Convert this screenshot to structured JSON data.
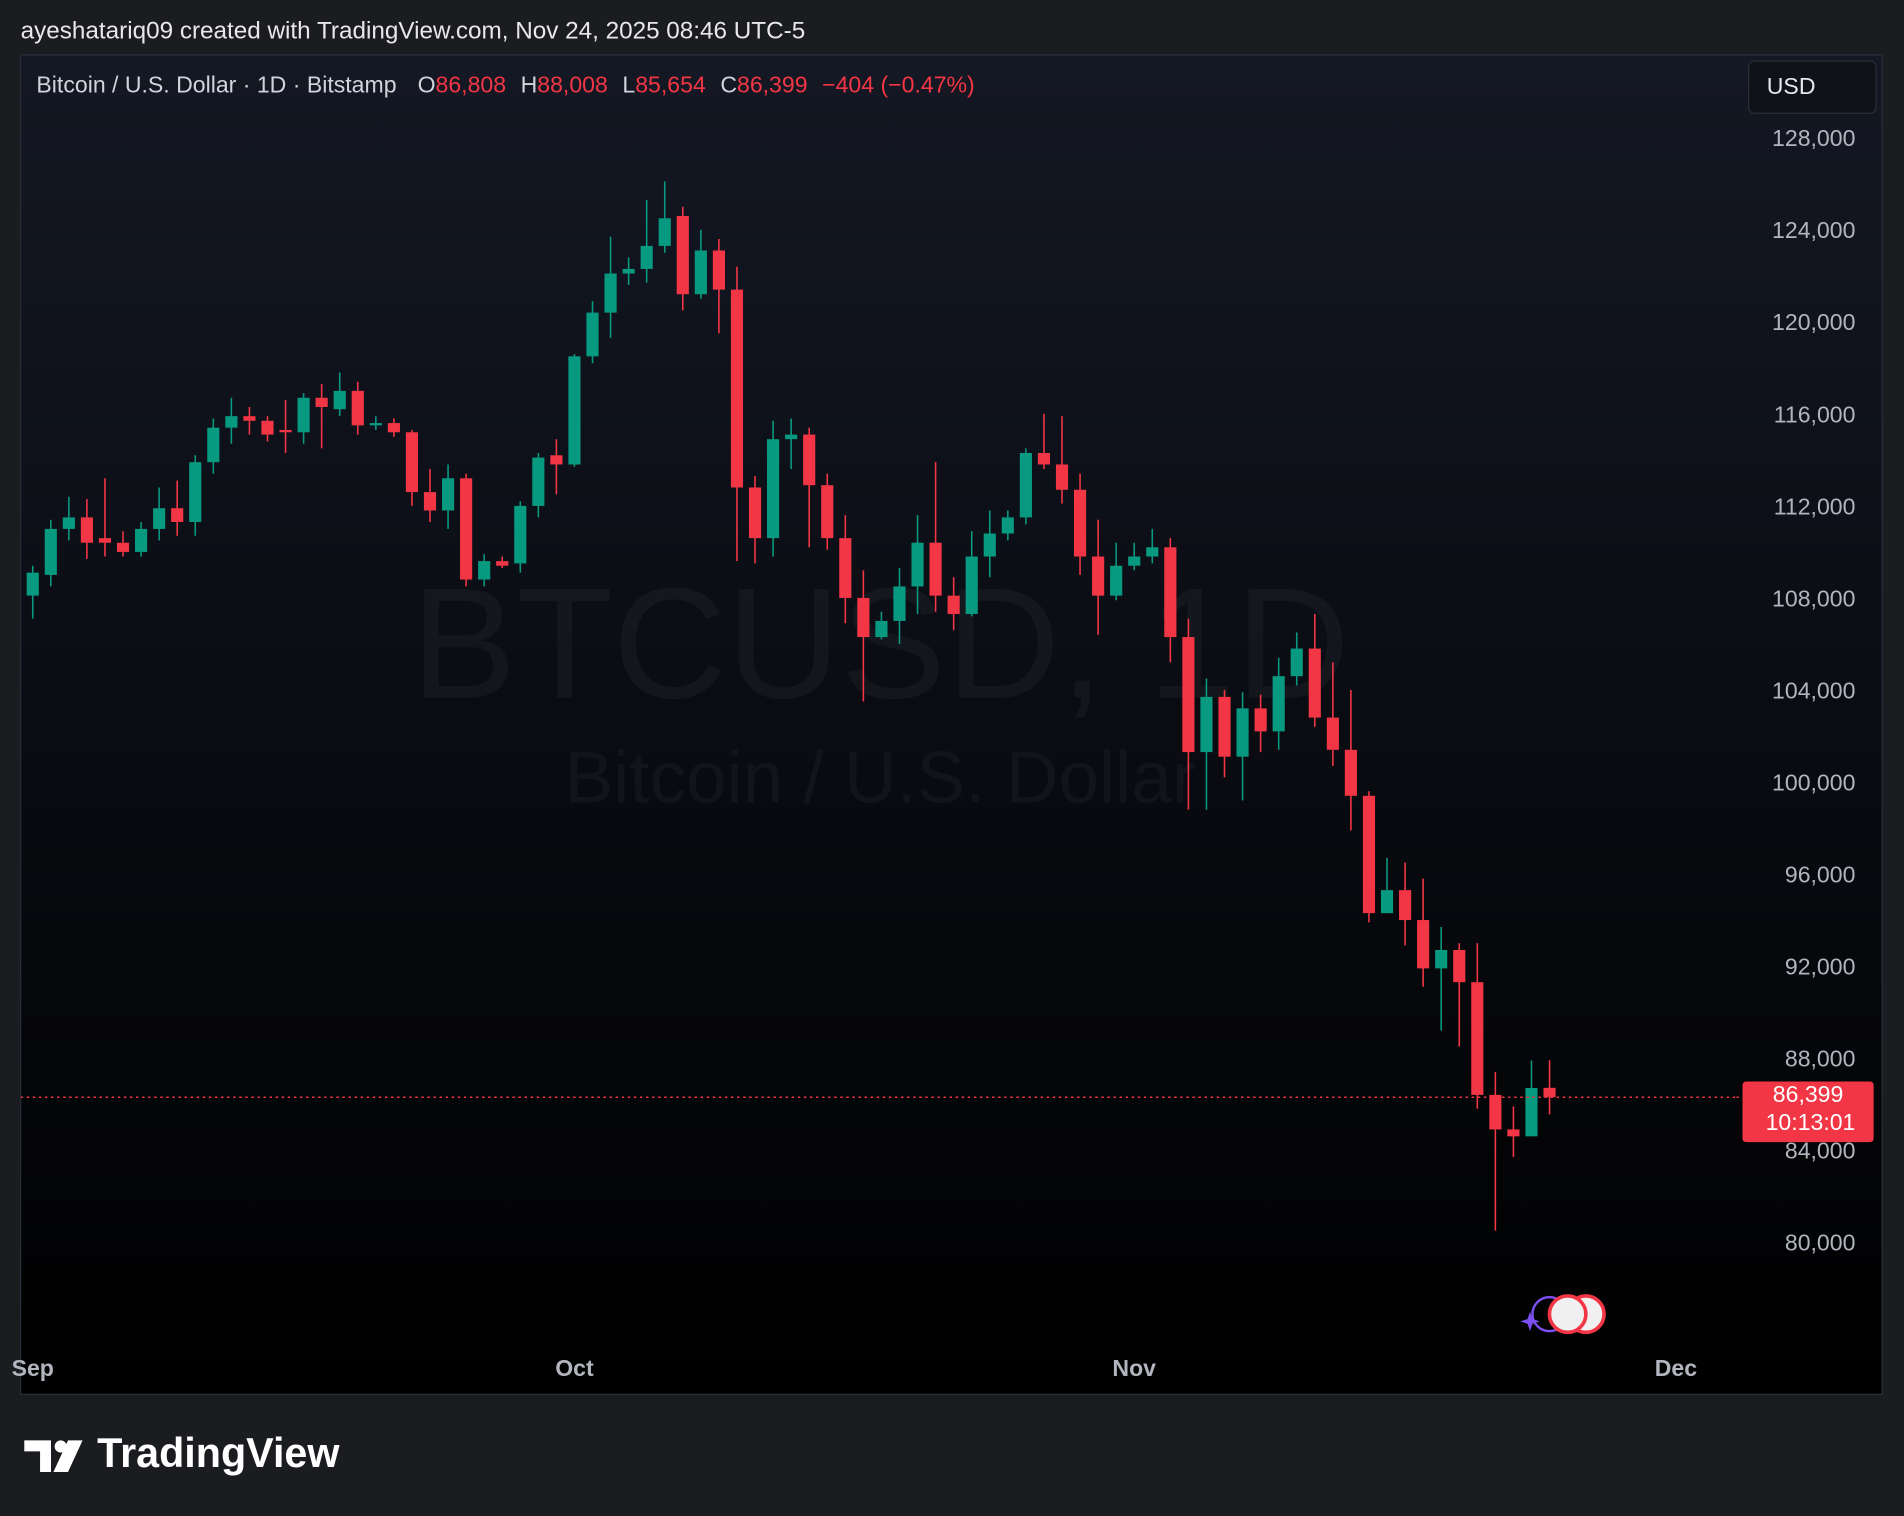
{
  "top_bar": {
    "caption": "ayeshatariq09 created with TradingView.com, Nov 24, 2025 08:46 UTC-5"
  },
  "chart_data": {
    "type": "candlestick",
    "symbol_title": "Bitcoin / U.S. Dollar · 1D · Bitstamp",
    "ohlc_legend": [
      {
        "key": "O",
        "value": "86,808"
      },
      {
        "key": "H",
        "value": "88,008"
      },
      {
        "key": "L",
        "value": "85,654"
      },
      {
        "key": "C",
        "value": "86,399"
      }
    ],
    "change": "−404 (−0.47%)",
    "currency": "USD",
    "watermark": {
      "symbol": "BTCUSD, 1D",
      "description": "Bitcoin / U.S. Dollar"
    },
    "up_color": "#089981",
    "down_color": "#f23645",
    "open": [
      108200,
      109100,
      111100,
      111600,
      110700,
      110500,
      110100,
      111100,
      112000,
      111400,
      114000,
      115500,
      116000,
      115800,
      115400,
      115300,
      116800,
      116300,
      117100,
      115600,
      115700,
      115300,
      112700,
      111900,
      113300,
      108900,
      109700,
      109600,
      112100,
      114300,
      113900,
      118600,
      120500,
      122200,
      122400,
      123400,
      124700,
      121300,
      123200,
      121500,
      112900,
      110700,
      115000,
      115200,
      113000,
      110700,
      108100,
      106400,
      107100,
      108600,
      110500,
      108200,
      107400,
      109900,
      110900,
      111600,
      114400,
      113900,
      112800,
      109900,
      108200,
      109500,
      109900,
      110300,
      106400,
      101400,
      103800,
      101200,
      103300,
      102300,
      104700,
      105900,
      102900,
      101500,
      99500,
      94400,
      95400,
      94100,
      92000,
      92800,
      91400,
      86500,
      85000,
      84700,
      86808
    ],
    "high": [
      109500,
      111500,
      112500,
      112400,
      113300,
      111000,
      111400,
      112900,
      113200,
      114300,
      115900,
      116800,
      116400,
      116000,
      116700,
      117000,
      117400,
      117900,
      117500,
      116000,
      115900,
      115400,
      113700,
      113900,
      113500,
      110000,
      109900,
      112300,
      114400,
      115000,
      118700,
      121000,
      123800,
      122900,
      125400,
      126200,
      125100,
      124100,
      123700,
      122500,
      113400,
      115800,
      115900,
      115500,
      113500,
      111700,
      109300,
      107500,
      109400,
      111700,
      114000,
      109000,
      111000,
      111900,
      111900,
      114600,
      116100,
      116000,
      113500,
      111500,
      110500,
      110500,
      111100,
      110700,
      107200,
      104600,
      104100,
      104000,
      103900,
      105500,
      106600,
      107400,
      105300,
      104100,
      99700,
      96800,
      96600,
      95900,
      93800,
      93100,
      93100,
      87500,
      86000,
      88000,
      88008
    ],
    "low": [
      107200,
      108600,
      110600,
      109800,
      109900,
      109900,
      109900,
      110600,
      110800,
      110800,
      113500,
      114800,
      115200,
      114900,
      114400,
      114800,
      114600,
      116000,
      115200,
      115400,
      115100,
      112100,
      111400,
      111100,
      108600,
      108600,
      109400,
      109200,
      111600,
      112600,
      113800,
      118300,
      119400,
      121700,
      121800,
      123100,
      120600,
      121100,
      119600,
      109700,
      109600,
      109900,
      113700,
      110300,
      110200,
      107000,
      103600,
      106300,
      106100,
      107400,
      107500,
      106700,
      107300,
      109000,
      110600,
      111300,
      113700,
      112200,
      109100,
      106500,
      108000,
      109300,
      109600,
      105300,
      98900,
      98900,
      100300,
      99300,
      101400,
      101500,
      104300,
      102500,
      100800,
      98000,
      94000,
      94400,
      93000,
      91200,
      89300,
      88600,
      85900,
      80600,
      83800,
      84700,
      85654
    ],
    "close": [
      109200,
      111100,
      111600,
      110500,
      110500,
      110100,
      111100,
      112000,
      111400,
      114000,
      115500,
      116000,
      115800,
      115200,
      115300,
      116800,
      116400,
      117100,
      115600,
      115700,
      115300,
      112700,
      111900,
      113300,
      108900,
      109700,
      109500,
      112100,
      114200,
      113900,
      118600,
      120500,
      122200,
      122400,
      123400,
      124600,
      121300,
      123200,
      121500,
      112900,
      110700,
      115000,
      115200,
      113000,
      110700,
      108100,
      106400,
      107100,
      108600,
      110500,
      108200,
      107400,
      109900,
      110900,
      111600,
      114400,
      113900,
      112800,
      109900,
      108200,
      109500,
      109900,
      110300,
      106400,
      101400,
      103800,
      101200,
      103300,
      102300,
      104700,
      105900,
      102900,
      101500,
      99500,
      94400,
      95400,
      94100,
      92000,
      92800,
      91400,
      86500,
      85000,
      84700,
      86800,
      86399
    ],
    "xlim": [
      -0.67,
      94.35
    ],
    "xticks": [
      {
        "value": 0,
        "label": "Sep"
      },
      {
        "value": 30,
        "label": "Oct"
      },
      {
        "value": 61,
        "label": "Nov"
      },
      {
        "value": 91,
        "label": "Dec"
      }
    ],
    "ylim": [
      75600,
      131700
    ],
    "yticks": [
      {
        "value": 80000,
        "label": "80,000"
      },
      {
        "value": 84000,
        "label": "84,000"
      },
      {
        "value": 88000,
        "label": "88,000"
      },
      {
        "value": 92000,
        "label": "92,000"
      },
      {
        "value": 96000,
        "label": "96,000"
      },
      {
        "value": 100000,
        "label": "100,000"
      },
      {
        "value": 104000,
        "label": "104,000"
      },
      {
        "value": 108000,
        "label": "108,000"
      },
      {
        "value": 112000,
        "label": "112,000"
      },
      {
        "value": 116000,
        "label": "116,000"
      },
      {
        "value": 120000,
        "label": "120,000"
      },
      {
        "value": 124000,
        "label": "124,000"
      },
      {
        "value": 128000,
        "label": "128,000"
      }
    ],
    "grid": false,
    "last_price": {
      "label": "86,399",
      "countdown": "10:13:01"
    }
  },
  "footer": {
    "brand": "TradingView"
  }
}
